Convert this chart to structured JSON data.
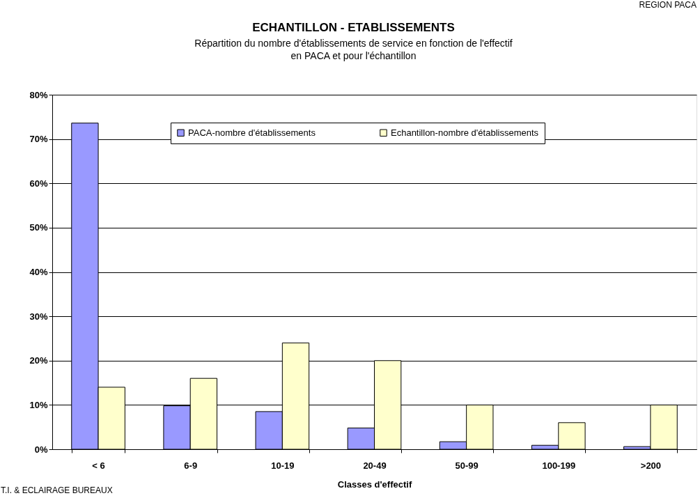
{
  "chart_data": {
    "type": "bar",
    "title": "ECHANTILLON - ETABLISSEMENTS",
    "subtitle": [
      "Répartition du nombre d'établissements de service en fonction de l'effectif",
      "en PACA et pour l'échantillon"
    ],
    "xlabel": "Classes d'effectif",
    "categories": [
      "< 6",
      "6-9",
      "10-19",
      "20-49",
      "50-99",
      "100-199",
      ">200"
    ],
    "series": [
      {
        "name": "PACA-nombre d'établissements",
        "color": "#9999ff",
        "values": [
          73.6,
          9.8,
          8.5,
          4.8,
          1.7,
          0.9,
          0.6
        ]
      },
      {
        "name": "Echantillon-nombre d'établissements",
        "color": "#ffffcc",
        "values": [
          14,
          16,
          24,
          20,
          10,
          6,
          10
        ]
      }
    ],
    "ylim": [
      0,
      80
    ],
    "yticks": [
      {
        "value": 0,
        "label": "0%"
      },
      {
        "value": 10,
        "label": "10%"
      },
      {
        "value": 20,
        "label": "20%"
      },
      {
        "value": 30,
        "label": "30%"
      },
      {
        "value": 40,
        "label": "40%"
      },
      {
        "value": 50,
        "label": "50%"
      },
      {
        "value": 60,
        "label": "60%"
      },
      {
        "value": 70,
        "label": "70%"
      },
      {
        "value": 80,
        "label": "80%"
      }
    ],
    "grid": "y",
    "legend": "top",
    "annotations": [
      "REGION PACA",
      "T.I. & ECLAIRAGE BUREAUX"
    ]
  }
}
